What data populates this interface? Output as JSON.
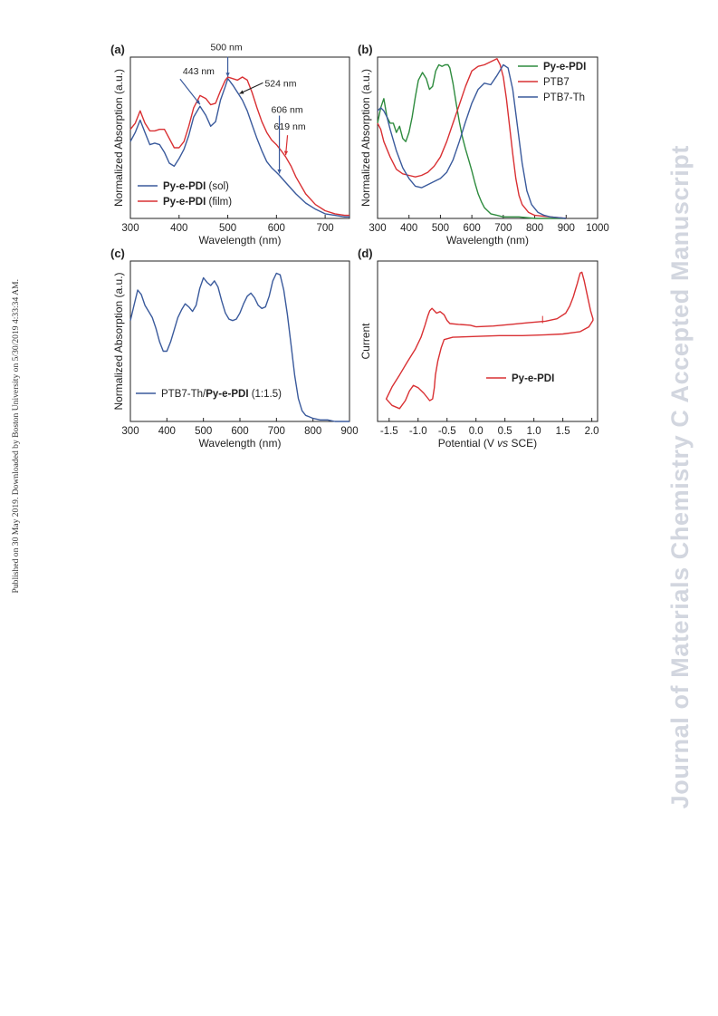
{
  "side_note": "Published on 30 May 2019. Downloaded by Boston University on 5/30/2019 4:33:34 AM.",
  "watermark": "Journal of Materials Chemistry C Accepted Manuscript",
  "chart_data": [
    {
      "panel": "(a)",
      "type": "line",
      "xlabel": "Wavelength (nm)",
      "ylabel": "Normalized Absorption (a.u.)",
      "xlim": [
        300,
        750
      ],
      "ylim": [
        0,
        1.05
      ],
      "xticks": [
        300,
        400,
        500,
        600,
        700
      ],
      "legend_position": "lower-left",
      "series": [
        {
          "name_bold": "Py-e-PDI",
          "name_rest": " (sol)",
          "color": "#3a5a9c",
          "x": [
            300,
            310,
            320,
            330,
            340,
            350,
            360,
            370,
            380,
            390,
            400,
            410,
            420,
            430,
            443,
            455,
            465,
            475,
            485,
            495,
            500,
            505,
            512,
            518,
            524,
            530,
            540,
            550,
            560,
            570,
            580,
            590,
            600,
            606,
            620,
            640,
            660,
            680,
            700,
            720,
            740,
            750
          ],
          "y": [
            0.5,
            0.56,
            0.64,
            0.56,
            0.48,
            0.49,
            0.48,
            0.43,
            0.36,
            0.34,
            0.39,
            0.45,
            0.54,
            0.66,
            0.73,
            0.67,
            0.6,
            0.63,
            0.77,
            0.86,
            0.91,
            0.89,
            0.86,
            0.83,
            0.8,
            0.77,
            0.7,
            0.61,
            0.52,
            0.44,
            0.37,
            0.33,
            0.3,
            0.28,
            0.23,
            0.16,
            0.1,
            0.06,
            0.03,
            0.02,
            0.01,
            0.01
          ]
        },
        {
          "name_bold": "Py-e-PDI",
          "name_rest": " (film)",
          "color": "#d93033",
          "x": [
            300,
            310,
            320,
            330,
            340,
            350,
            360,
            370,
            380,
            390,
            400,
            410,
            420,
            430,
            443,
            455,
            465,
            475,
            485,
            495,
            500,
            510,
            520,
            530,
            540,
            550,
            560,
            570,
            580,
            590,
            600,
            610,
            619,
            630,
            640,
            660,
            680,
            700,
            720,
            740,
            750
          ],
          "y": [
            0.58,
            0.62,
            0.7,
            0.62,
            0.57,
            0.57,
            0.58,
            0.58,
            0.52,
            0.46,
            0.46,
            0.5,
            0.6,
            0.72,
            0.8,
            0.78,
            0.74,
            0.75,
            0.83,
            0.9,
            0.92,
            0.91,
            0.9,
            0.92,
            0.9,
            0.82,
            0.72,
            0.63,
            0.56,
            0.51,
            0.48,
            0.44,
            0.4,
            0.34,
            0.27,
            0.16,
            0.09,
            0.05,
            0.03,
            0.02,
            0.02
          ]
        }
      ],
      "annotations": [
        {
          "text": "443 nm",
          "x": 443,
          "y": 0.73,
          "arrow_color": "#3a5a9c"
        },
        {
          "text": "500 nm",
          "x": 500,
          "y": 0.91,
          "arrow_color": "#3a5a9c"
        },
        {
          "text": "524 nm",
          "x": 524,
          "y": 0.8,
          "arrow_color": "#222222"
        },
        {
          "text": "606 nm",
          "x": 606,
          "y": 0.28,
          "arrow_color": "#3a5a9c"
        },
        {
          "text": "619 nm",
          "x": 619,
          "y": 0.4,
          "arrow_color": "#d93033"
        }
      ]
    },
    {
      "panel": "(b)",
      "type": "line",
      "xlabel": "Wavelength (nm)",
      "ylabel": "Normalized Absorption (a.u.)",
      "xlim": [
        300,
        1000
      ],
      "ylim": [
        0,
        1.05
      ],
      "xticks": [
        300,
        400,
        500,
        600,
        700,
        800,
        900,
        1000
      ],
      "legend_position": "top-right",
      "series": [
        {
          "name_bold": "Py-e-PDI",
          "name_rest": "",
          "color": "#2e8b3e",
          "x": [
            300,
            310,
            320,
            330,
            340,
            350,
            360,
            370,
            380,
            390,
            400,
            410,
            420,
            430,
            443,
            455,
            465,
            475,
            485,
            495,
            505,
            515,
            524,
            530,
            540,
            550,
            560,
            570,
            580,
            590,
            600,
            610,
            620,
            630,
            640,
            660,
            680,
            700,
            750,
            800,
            850,
            900
          ],
          "y": [
            0.62,
            0.72,
            0.78,
            0.66,
            0.62,
            0.62,
            0.56,
            0.6,
            0.52,
            0.5,
            0.56,
            0.66,
            0.79,
            0.9,
            0.95,
            0.91,
            0.84,
            0.86,
            0.96,
            1.0,
            0.99,
            1.0,
            1.0,
            0.98,
            0.88,
            0.75,
            0.63,
            0.53,
            0.45,
            0.38,
            0.31,
            0.23,
            0.16,
            0.11,
            0.07,
            0.03,
            0.02,
            0.01,
            0.01,
            0.0,
            0.0,
            0.0
          ]
        },
        {
          "name_bold": "",
          "name_rest": "PTB7",
          "color": "#d93033",
          "x": [
            300,
            310,
            320,
            340,
            360,
            380,
            400,
            420,
            440,
            460,
            480,
            500,
            520,
            540,
            560,
            580,
            600,
            620,
            640,
            660,
            680,
            690,
            700,
            710,
            720,
            730,
            740,
            750,
            760,
            780,
            800,
            850,
            900
          ],
          "y": [
            0.62,
            0.58,
            0.5,
            0.4,
            0.32,
            0.29,
            0.28,
            0.27,
            0.28,
            0.3,
            0.34,
            0.4,
            0.5,
            0.62,
            0.74,
            0.86,
            0.96,
            0.99,
            1.0,
            1.02,
            1.04,
            1.0,
            0.92,
            0.78,
            0.6,
            0.42,
            0.26,
            0.15,
            0.09,
            0.04,
            0.02,
            0.01,
            0.0
          ]
        },
        {
          "name_bold": "",
          "name_rest": "PTB7-Th",
          "color": "#3a5a9c",
          "x": [
            300,
            310,
            320,
            330,
            340,
            360,
            380,
            400,
            420,
            440,
            460,
            480,
            500,
            520,
            540,
            560,
            580,
            600,
            620,
            640,
            660,
            680,
            700,
            715,
            730,
            745,
            760,
            775,
            790,
            810,
            830,
            850,
            900
          ],
          "y": [
            0.7,
            0.72,
            0.7,
            0.66,
            0.58,
            0.44,
            0.33,
            0.26,
            0.21,
            0.2,
            0.22,
            0.24,
            0.26,
            0.3,
            0.38,
            0.5,
            0.63,
            0.75,
            0.84,
            0.88,
            0.87,
            0.93,
            1.0,
            0.98,
            0.84,
            0.6,
            0.36,
            0.18,
            0.09,
            0.04,
            0.02,
            0.01,
            0.0
          ]
        }
      ]
    },
    {
      "panel": "(c)",
      "type": "line",
      "xlabel": "Wavelength (nm)",
      "ylabel": "Normalized Absorption (a.u.)",
      "xlim": [
        300,
        900
      ],
      "ylim": [
        0,
        1.05
      ],
      "xticks": [
        300,
        400,
        500,
        600,
        700,
        800,
        900
      ],
      "legend_position": "lower-left",
      "series": [
        {
          "name_bold": "Py-e-PDI",
          "name_pre": "PTB7-Th/",
          "name_rest": " (1:1.5)",
          "color": "#3a5a9c",
          "x": [
            300,
            310,
            320,
            330,
            340,
            350,
            360,
            370,
            380,
            390,
            400,
            410,
            420,
            430,
            440,
            450,
            460,
            470,
            480,
            490,
            500,
            510,
            520,
            530,
            540,
            550,
            560,
            570,
            580,
            590,
            600,
            610,
            620,
            630,
            640,
            650,
            660,
            670,
            680,
            690,
            700,
            710,
            720,
            730,
            740,
            750,
            760,
            770,
            780,
            790,
            800,
            820,
            840,
            860,
            880,
            900
          ],
          "y": [
            0.66,
            0.76,
            0.86,
            0.83,
            0.76,
            0.72,
            0.68,
            0.61,
            0.52,
            0.46,
            0.46,
            0.52,
            0.6,
            0.68,
            0.73,
            0.77,
            0.75,
            0.72,
            0.76,
            0.87,
            0.94,
            0.91,
            0.89,
            0.92,
            0.88,
            0.79,
            0.71,
            0.67,
            0.66,
            0.67,
            0.71,
            0.77,
            0.82,
            0.84,
            0.81,
            0.76,
            0.74,
            0.75,
            0.82,
            0.92,
            0.97,
            0.96,
            0.86,
            0.7,
            0.5,
            0.3,
            0.15,
            0.07,
            0.04,
            0.03,
            0.02,
            0.01,
            0.01,
            0.0,
            0.0,
            0.0
          ]
        }
      ]
    },
    {
      "panel": "(d)",
      "type": "line",
      "xlabel_pre": "Potential (V ",
      "xlabel_italic": "vs",
      "xlabel_post": " SCE)",
      "ylabel": "Current",
      "xlim": [
        -1.7,
        2.1
      ],
      "ylim": [
        -1.0,
        1.0
      ],
      "xticks": [
        "-1.5",
        "-1.0",
        "-0.5",
        "0.0",
        "0.5",
        "1.0",
        "1.5",
        "2.0"
      ],
      "xtick_values": [
        -1.5,
        -1.0,
        -0.5,
        0.0,
        0.5,
        1.0,
        1.5,
        2.0
      ],
      "legend_position": "lower-right",
      "series": [
        {
          "name_bold": "Py-e-PDI",
          "name_rest": "",
          "color": "#d93033",
          "x": [
            0.0,
            0.3,
            0.6,
            0.9,
            1.2,
            1.4,
            1.55,
            1.62,
            1.68,
            1.72,
            1.75,
            1.78,
            1.8,
            1.83,
            1.87,
            1.92,
            1.98,
            2.02,
            2.02,
            1.95,
            1.8,
            1.5,
            1.2,
            0.8,
            0.4,
            0.0,
            -0.4,
            -0.55,
            -0.6,
            -0.66,
            -0.7,
            -0.72,
            -0.75,
            -0.8,
            -0.9,
            -1.0,
            -1.08,
            -1.15,
            -1.22,
            -1.32,
            -1.45,
            -1.55,
            -1.45,
            -1.32,
            -1.18,
            -1.05,
            -0.95,
            -0.88,
            -0.83,
            -0.8,
            -0.76,
            -0.72,
            -0.68,
            -0.62,
            -0.55,
            -0.5,
            -0.45,
            -0.3,
            -0.1,
            0.0
          ],
          "y": [
            0.18,
            0.19,
            0.21,
            0.23,
            0.25,
            0.28,
            0.35,
            0.44,
            0.55,
            0.65,
            0.72,
            0.8,
            0.85,
            0.86,
            0.75,
            0.58,
            0.38,
            0.28,
            0.26,
            0.18,
            0.12,
            0.09,
            0.08,
            0.07,
            0.07,
            0.06,
            0.05,
            0.02,
            -0.08,
            -0.25,
            -0.42,
            -0.58,
            -0.72,
            -0.74,
            -0.65,
            -0.58,
            -0.55,
            -0.62,
            -0.74,
            -0.84,
            -0.8,
            -0.72,
            -0.57,
            -0.42,
            -0.25,
            -0.1,
            0.05,
            0.2,
            0.32,
            0.38,
            0.41,
            0.38,
            0.35,
            0.37,
            0.33,
            0.26,
            0.22,
            0.21,
            0.2,
            0.18
          ]
        }
      ]
    }
  ]
}
